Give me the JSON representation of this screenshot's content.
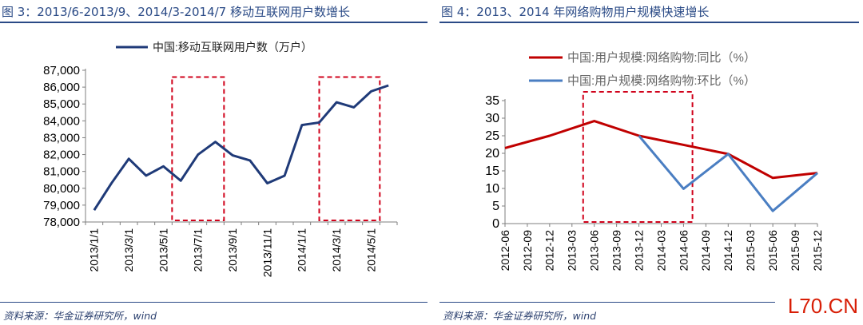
{
  "left": {
    "title": "图 3：2013/6-2013/9、2014/3-2014/7 移动互联网用户数增长",
    "source": "资料来源：华金证券研究所，wind",
    "chart_data": {
      "type": "line",
      "legend_position": "top-center",
      "ylim": [
        78000,
        87000
      ],
      "yticks": [
        "78,000",
        "79,000",
        "80,000",
        "81,000",
        "82,000",
        "83,000",
        "84,000",
        "85,000",
        "86,000",
        "87,000"
      ],
      "xticks": [
        "2013/1/1",
        "2013/3/1",
        "2013/5/1",
        "2013/7/1",
        "2013/9/1",
        "2013/11/1",
        "2014/1/1",
        "2014/3/1",
        "2014/5/1"
      ],
      "series": [
        {
          "name": "中国:移动互联网用户数（万户）",
          "color": "#1f3a78",
          "values": [
            78700,
            80300,
            81750,
            80750,
            81300,
            80450,
            82000,
            82750,
            81950,
            81650,
            80300,
            80750,
            83750,
            83900,
            85100,
            84800,
            85750,
            86100
          ]
        }
      ],
      "highlight_boxes": [
        {
          "x_index_from": 5,
          "x_index_to": 8,
          "y_from": 78000,
          "y_to": 86600
        },
        {
          "x_index_from": 13.5,
          "x_index_to": 17,
          "y_from": 78000,
          "y_to": 86600
        }
      ],
      "grid": false
    }
  },
  "right": {
    "title": "图 4：2013、2014 年网络购物用户规模快速增长",
    "source": "资料来源：华金证券研究所，wind",
    "chart_data": {
      "type": "line",
      "legend_position": "top-center",
      "ylim": [
        0,
        35
      ],
      "yticks": [
        "0",
        "5",
        "10",
        "15",
        "20",
        "25",
        "30",
        "35"
      ],
      "xticks": [
        "2012-06",
        "2012-09",
        "2012-12",
        "2013-03",
        "2013-06",
        "2013-09",
        "2013-12",
        "2014-03",
        "2014-06",
        "2014-09",
        "2014-12",
        "2015-03",
        "2015-06",
        "2015-09",
        "2015-12"
      ],
      "series": [
        {
          "name": "中国:用户规模:网络购物:同比（%）",
          "color": "#c00000",
          "points": [
            [
              0,
              21.5
            ],
            [
              2,
              25
            ],
            [
              4,
              29.2
            ],
            [
              6,
              25
            ],
            [
              8,
              22.4
            ],
            [
              10,
              19.8
            ],
            [
              12,
              13
            ],
            [
              14,
              14.4
            ]
          ]
        },
        {
          "name": "中国:用户规模:网络购物:环比（%）",
          "color": "#4a7ec2",
          "points": [
            [
              6,
              25
            ],
            [
              8,
              9.9
            ],
            [
              10,
              19.8
            ],
            [
              12,
              3.6
            ],
            [
              14,
              14.4
            ]
          ]
        }
      ],
      "highlight_boxes": [
        {
          "x_index_from": 3.5,
          "x_index_to": 8.4,
          "y_from": 0,
          "y_to": 37.5
        }
      ],
      "grid": false
    }
  },
  "watermark": "L70.CN"
}
